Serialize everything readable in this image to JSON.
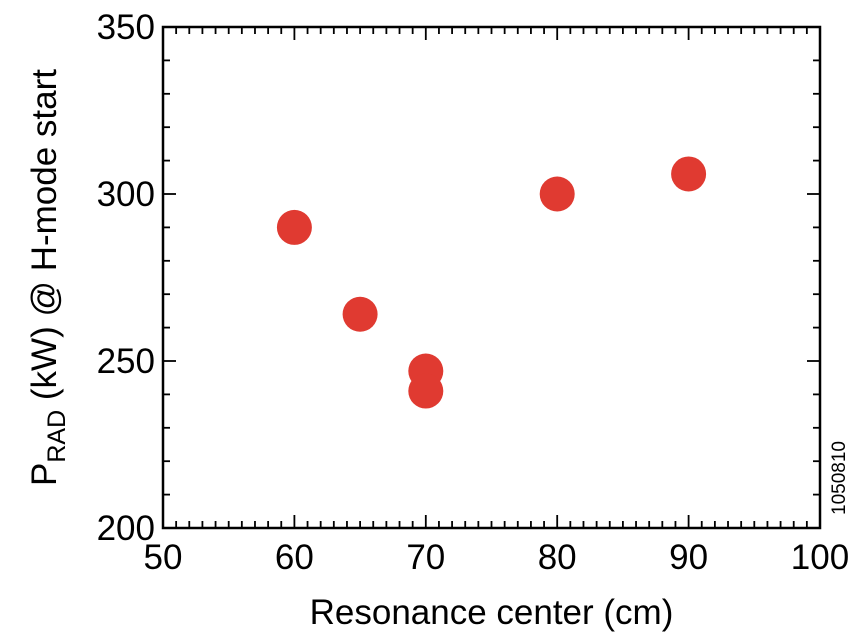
{
  "chart_data": {
    "type": "scatter",
    "xlabel": "Resonance center (cm)",
    "ylabel": {
      "prefix": "P",
      "subscript": "RAD",
      "suffix": " (kW) @ H-mode start"
    },
    "xlim": [
      50,
      100
    ],
    "ylim": [
      200,
      350
    ],
    "x_ticks": [
      50,
      60,
      70,
      80,
      90,
      100
    ],
    "y_ticks": [
      200,
      250,
      300,
      350
    ],
    "grid": false,
    "legend": "none",
    "series": [
      {
        "color": "#e03a31",
        "points": [
          {
            "x": 60,
            "y": 290
          },
          {
            "x": 65,
            "y": 264
          },
          {
            "x": 70,
            "y": 247
          },
          {
            "x": 70,
            "y": 241
          },
          {
            "x": 80,
            "y": 300
          },
          {
            "x": 90,
            "y": 306
          }
        ]
      }
    ],
    "annotation": "1050810"
  }
}
